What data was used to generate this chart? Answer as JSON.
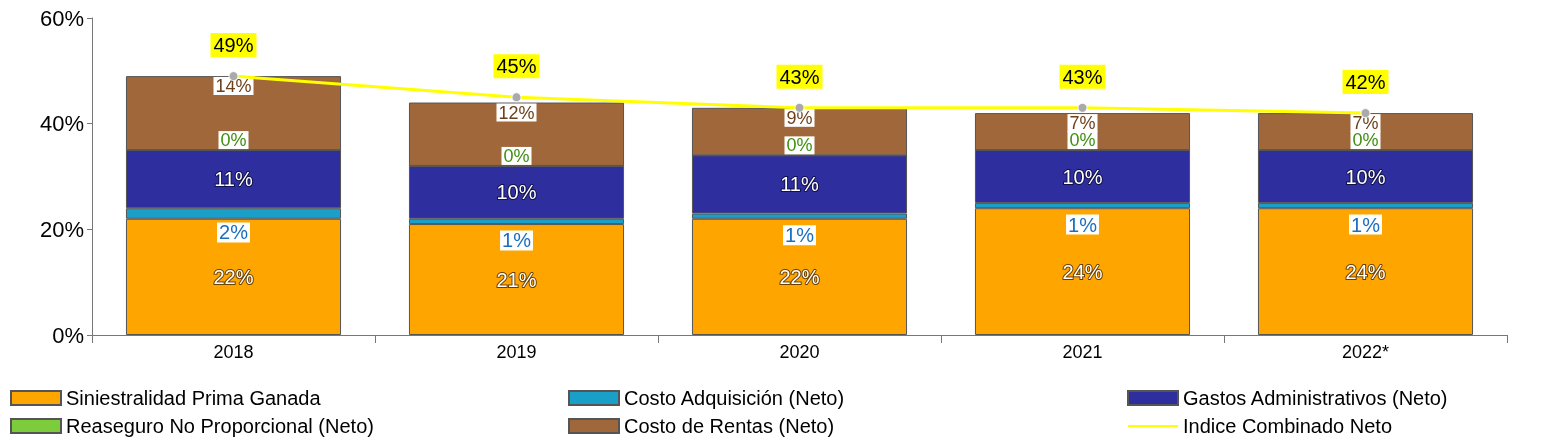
{
  "chart_data": {
    "type": "bar",
    "stacked": true,
    "categories": [
      "2018",
      "2019",
      "2020",
      "2021",
      "2022*"
    ],
    "series": [
      {
        "name": "Siniestralidad Prima Ganada",
        "color": "#ffa500",
        "values": [
          22,
          21,
          22,
          24,
          24
        ],
        "value_labels": [
          "22%",
          "21%",
          "22%",
          "24%",
          "24%"
        ]
      },
      {
        "name": "Costo Adquisición (Neto)",
        "color": "#1a9fc8",
        "values": [
          2,
          1,
          1,
          1,
          1
        ],
        "value_labels": [
          "2%",
          "1%",
          "1%",
          "1%",
          "1%"
        ]
      },
      {
        "name": "Gastos Administrativos (Neto)",
        "color": "#2e2e9e",
        "values": [
          11,
          10,
          11,
          10,
          10
        ],
        "value_labels": [
          "11%",
          "10%",
          "11%",
          "10%",
          "10%"
        ]
      },
      {
        "name": "Reaseguro No Proporcional (Neto)",
        "color": "#7ccc3c",
        "values": [
          0,
          0,
          0,
          0,
          0
        ],
        "value_labels": [
          "0%",
          "0%",
          "0%",
          "0%",
          "0%"
        ]
      },
      {
        "name": "Costo de Rentas (Neto)",
        "color": "#a0673a",
        "values": [
          14,
          12,
          9,
          7,
          7
        ],
        "value_labels": [
          "14%",
          "12%",
          "9%",
          "7%",
          "7%"
        ]
      },
      {
        "name": "Indice Combinado Neto",
        "type": "line",
        "color": "#ffff00",
        "values": [
          49,
          45,
          43,
          43,
          42
        ],
        "value_labels": [
          "49%",
          "45%",
          "43%",
          "43%",
          "42%"
        ],
        "marker": "circle",
        "line_style": "solid"
      }
    ],
    "ylim": [
      0,
      60
    ],
    "yticks": [
      {
        "value": 0,
        "label": "0%"
      },
      {
        "value": 20,
        "label": "20%"
      },
      {
        "value": 40,
        "label": "40%"
      },
      {
        "value": 60,
        "label": "60%"
      }
    ],
    "grid": false,
    "legend": "bottom"
  }
}
